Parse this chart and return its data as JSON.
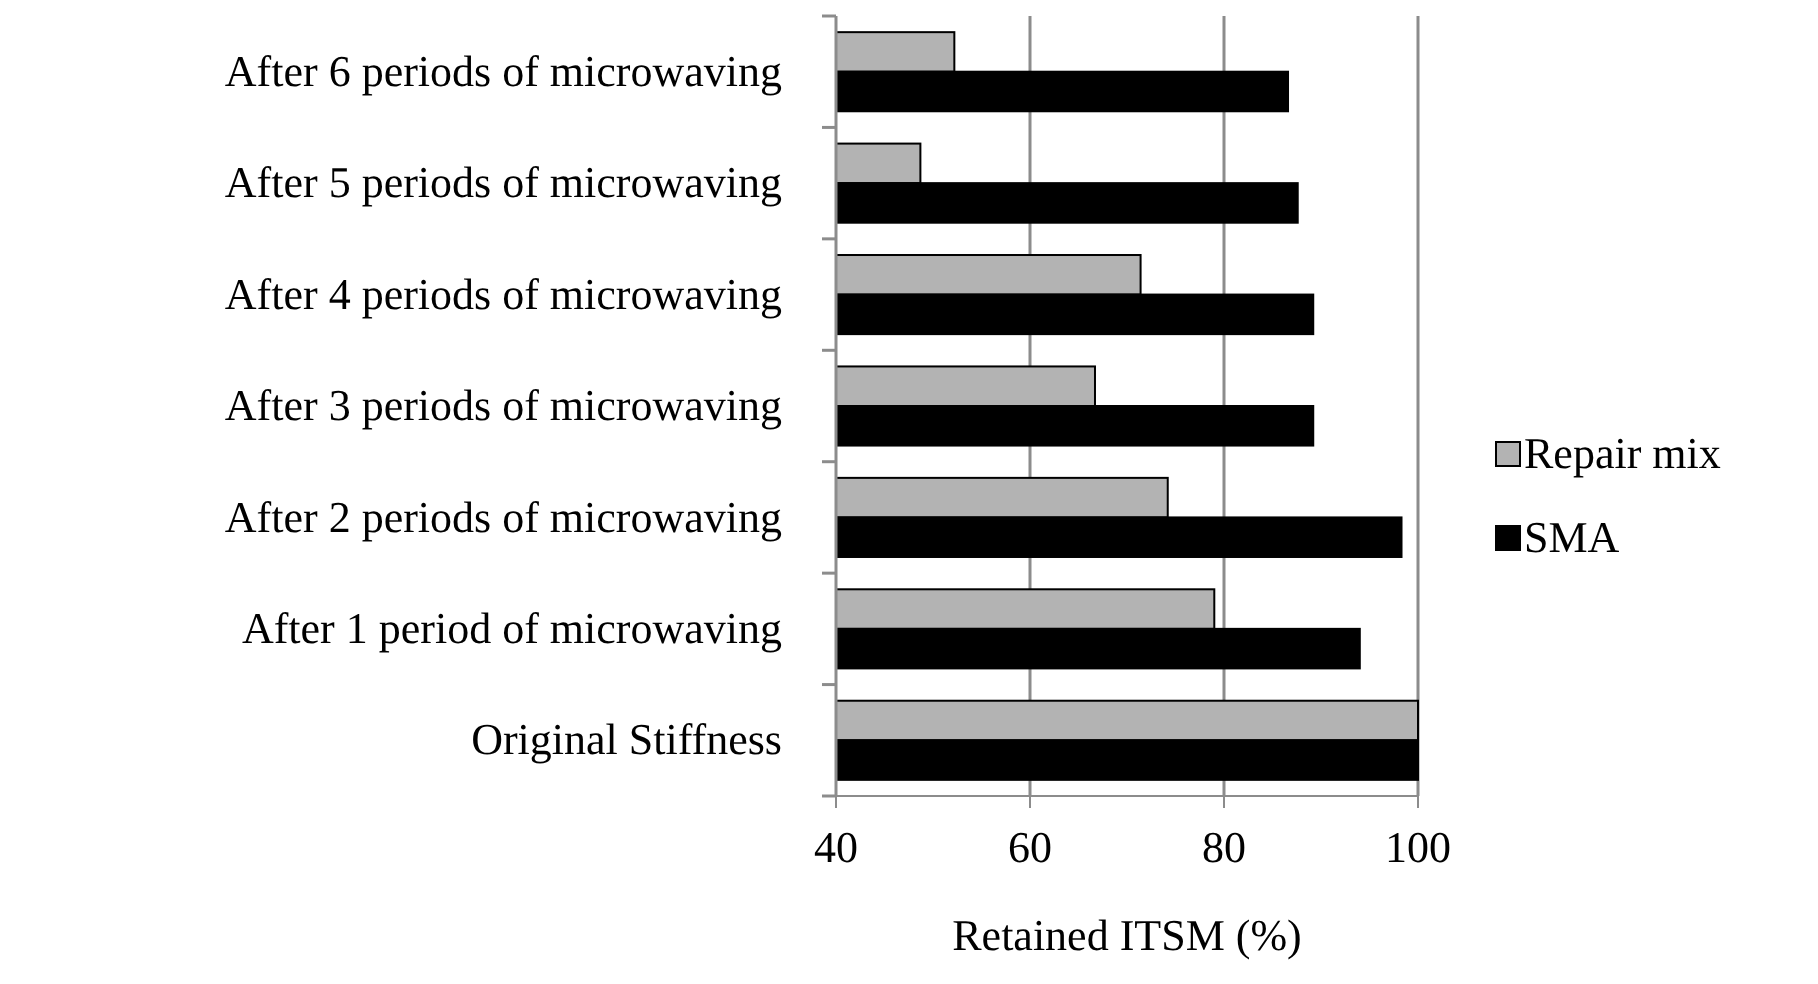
{
  "chart_data": {
    "type": "bar",
    "orientation": "horizontal",
    "xlabel": "Retained ITSM (%)",
    "categories": [
      "After 6 periods of microwaving",
      "After 5 periods of microwaving",
      "After 4 periods of microwaving",
      "After 3 periods of microwaving",
      "After 2 periods of microwaving",
      "After 1 period of microwaving",
      "Original Stiffness"
    ],
    "series": [
      {
        "name": "Repair mix",
        "color": "#b3b3b3",
        "values": [
          52.2,
          48.7,
          71.4,
          66.7,
          74.2,
          79.0,
          100
        ]
      },
      {
        "name": "SMA",
        "color": "#000000",
        "values": [
          86.6,
          87.6,
          89.2,
          89.2,
          98.3,
          94.0,
          100
        ]
      }
    ],
    "xlim": [
      40,
      100
    ],
    "xticks": [
      40,
      60,
      80,
      100
    ],
    "grid": "x",
    "legend": "right"
  }
}
